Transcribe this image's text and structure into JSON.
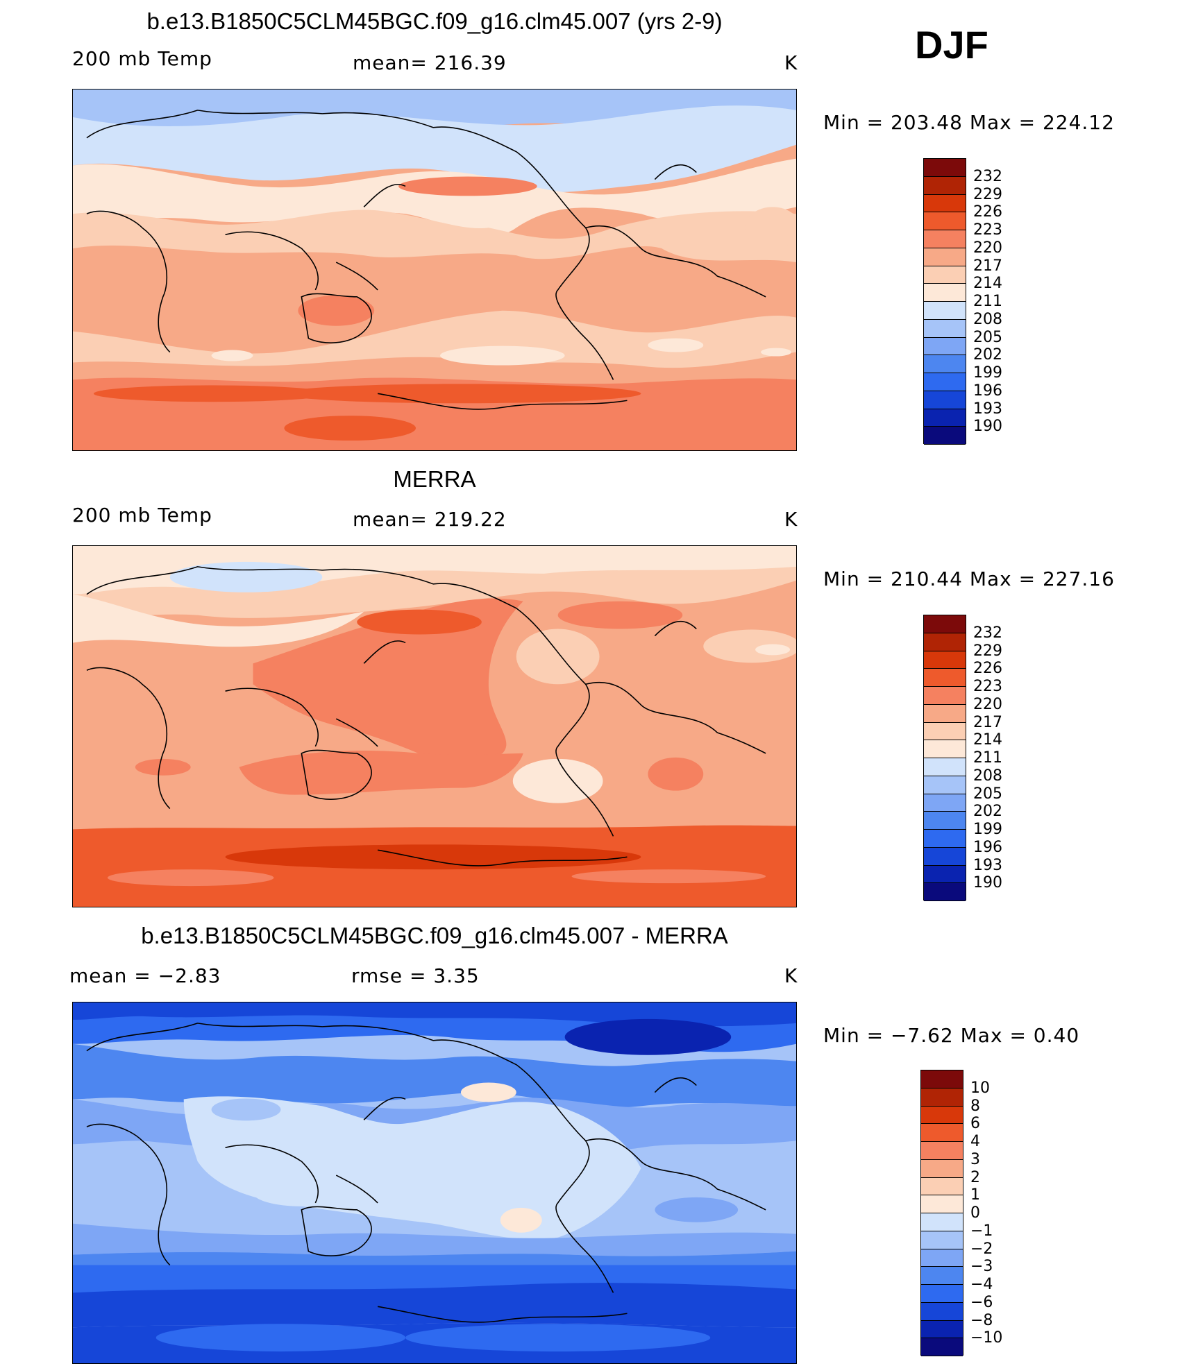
{
  "season": "DJF",
  "units": "K",
  "colors": {
    "temp_scale": [
      "#0a0a7c",
      "#0a23b0",
      "#1646d8",
      "#2e6af0",
      "#4d86f0",
      "#7ea6f5",
      "#a6c4f8",
      "#d1e3fb",
      "#fde8d8",
      "#fbcfb4",
      "#f7a987",
      "#f58160",
      "#ee5a2c",
      "#d8380a",
      "#b02405",
      "#7c0a0a"
    ],
    "diff_scale": [
      "#0a0a7c",
      "#0a23b0",
      "#1646d8",
      "#2e6af0",
      "#4d86f0",
      "#7ea6f5",
      "#a6c4f8",
      "#d1e3fb",
      "#fde8d8",
      "#fbcfb4",
      "#f7a987",
      "#f58160",
      "#ee5a2c",
      "#d8380a",
      "#b02405",
      "#7c0a0a"
    ]
  },
  "panels": [
    {
      "id": "model",
      "title": "b.e13.B1850C5CLM45BGC.f09_g16.clm45.007 (yrs 2-9)",
      "left_label": "200 mb Temp",
      "center_label": "mean=  216.39",
      "right_label": "K",
      "minmax": "Min  =  203.48  Max  =  224.12",
      "field_mean": 216.39,
      "field_min": 203.48,
      "field_max": 224.12,
      "colorbar_ticks": [
        "232",
        "229",
        "226",
        "223",
        "220",
        "217",
        "214",
        "211",
        "208",
        "205",
        "202",
        "199",
        "196",
        "193",
        "190"
      ]
    },
    {
      "id": "obs",
      "title": "MERRA",
      "left_label": "200 mb Temp",
      "center_label": "mean=  219.22",
      "right_label": "K",
      "minmax": "Min  =  210.44  Max  =  227.16",
      "field_mean": 219.22,
      "field_min": 210.44,
      "field_max": 227.16,
      "colorbar_ticks": [
        "232",
        "229",
        "226",
        "223",
        "220",
        "217",
        "214",
        "211",
        "208",
        "205",
        "202",
        "199",
        "196",
        "193",
        "190"
      ]
    },
    {
      "id": "diff",
      "title": "b.e13.B1850C5CLM45BGC.f09_g16.clm45.007 - MERRA",
      "left_label": "mean  =     −2.83",
      "center_label": "rmse  =      3.35",
      "right_label": "K",
      "minmax": "Min  =     −7.62  Max  =      0.40",
      "field_mean": -2.83,
      "field_rmse": 3.35,
      "field_min": -7.62,
      "field_max": 0.4,
      "colorbar_ticks": [
        "10",
        "8",
        "6",
        "4",
        "3",
        "2",
        "1",
        "0",
        "−1",
        "−2",
        "−3",
        "−4",
        "−6",
        "−8",
        "−10"
      ]
    }
  ]
}
